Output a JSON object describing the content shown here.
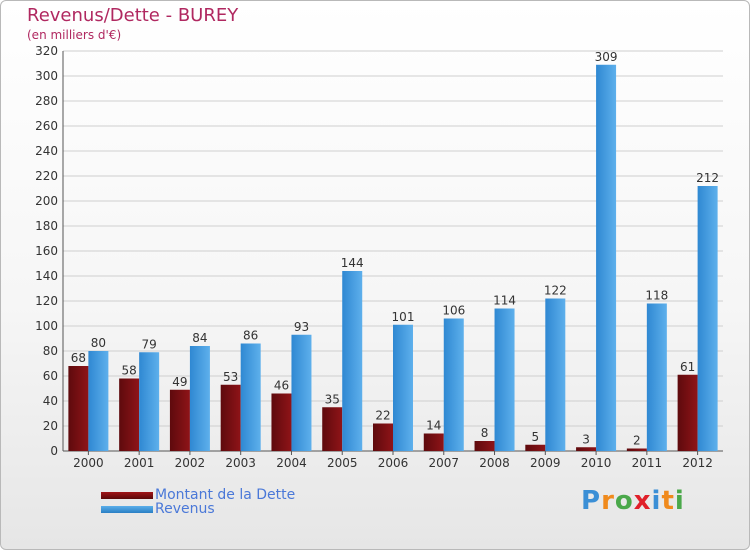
{
  "title": "Revenus/Dette - BUREY",
  "subtitle": "(en milliers d'€)",
  "colors": {
    "dette": "#7d0e12",
    "revenus": "#3b95dc",
    "title": "#b02860",
    "legend_text": "#4a78d8"
  },
  "legend": [
    {
      "label": "Montant de la Dette",
      "color": "#7d0e12"
    },
    {
      "label": "Revenus",
      "color": "#3b95dc"
    }
  ],
  "logo": {
    "text": "Proxiti"
  },
  "chart_data": {
    "type": "bar",
    "title": "Revenus/Dette - BUREY",
    "ylabel": "(en milliers d'€)",
    "xlabel": "",
    "categories": [
      "2000",
      "2001",
      "2002",
      "2003",
      "2004",
      "2005",
      "2006",
      "2007",
      "2008",
      "2009",
      "2010",
      "2011",
      "2012"
    ],
    "series": [
      {
        "name": "Montant de la Dette",
        "color": "#7d0e12",
        "values": [
          68,
          58,
          49,
          53,
          46,
          35,
          22,
          14,
          8,
          5,
          3,
          2,
          61
        ]
      },
      {
        "name": "Revenus",
        "color": "#3b95dc",
        "values": [
          80,
          79,
          84,
          86,
          93,
          144,
          101,
          106,
          114,
          122,
          309,
          118,
          212
        ]
      }
    ],
    "ylim": [
      0,
      320
    ],
    "yticks": [
      0,
      20,
      40,
      60,
      80,
      100,
      120,
      140,
      160,
      180,
      200,
      220,
      240,
      260,
      280,
      300,
      320
    ],
    "grid": true,
    "legend": "bottom-left"
  }
}
